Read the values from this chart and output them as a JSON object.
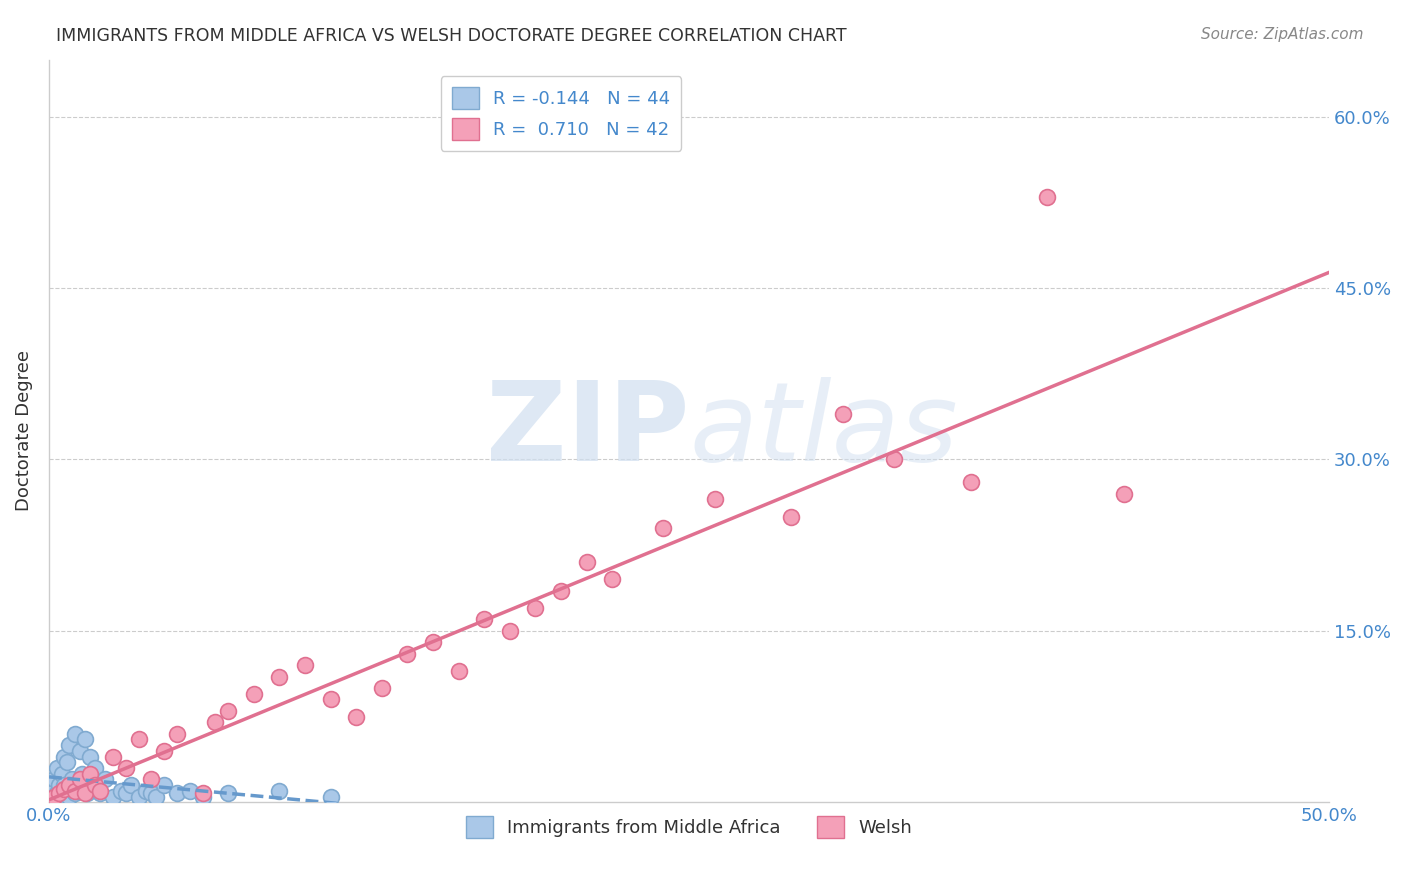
{
  "title": "IMMIGRANTS FROM MIDDLE AFRICA VS WELSH DOCTORATE DEGREE CORRELATION CHART",
  "source": "Source: ZipAtlas.com",
  "ylabel": "Doctorate Degree",
  "y_ticks": [
    0.0,
    0.15,
    0.3,
    0.45,
    0.6
  ],
  "y_tick_labels": [
    "",
    "15.0%",
    "30.0%",
    "45.0%",
    "60.0%"
  ],
  "xlim": [
    0.0,
    0.5
  ],
  "ylim": [
    0.0,
    0.65
  ],
  "series1_name": "Immigrants from Middle Africa",
  "series1_color": "#aac8e8",
  "series1_edge_color": "#80aad0",
  "series1_R": -0.144,
  "series1_N": 44,
  "series1_line_color": "#6699cc",
  "series1_x": [
    0.001,
    0.002,
    0.002,
    0.003,
    0.003,
    0.004,
    0.004,
    0.005,
    0.005,
    0.006,
    0.006,
    0.007,
    0.007,
    0.008,
    0.008,
    0.009,
    0.01,
    0.01,
    0.011,
    0.012,
    0.012,
    0.013,
    0.014,
    0.015,
    0.016,
    0.017,
    0.018,
    0.02,
    0.022,
    0.025,
    0.028,
    0.03,
    0.032,
    0.035,
    0.038,
    0.04,
    0.042,
    0.045,
    0.05,
    0.055,
    0.06,
    0.07,
    0.09,
    0.11
  ],
  "series1_y": [
    0.005,
    0.01,
    0.02,
    0.008,
    0.03,
    0.005,
    0.015,
    0.01,
    0.025,
    0.015,
    0.04,
    0.01,
    0.035,
    0.005,
    0.05,
    0.02,
    0.008,
    0.06,
    0.015,
    0.01,
    0.045,
    0.025,
    0.055,
    0.008,
    0.04,
    0.015,
    0.03,
    0.008,
    0.02,
    0.005,
    0.01,
    0.008,
    0.015,
    0.005,
    0.01,
    0.008,
    0.005,
    0.015,
    0.008,
    0.01,
    0.005,
    0.008,
    0.01,
    0.005
  ],
  "series2_name": "Welsh",
  "series2_color": "#f4a0b8",
  "series2_edge_color": "#e07090",
  "series2_R": 0.71,
  "series2_N": 42,
  "series2_line_color": "#e07090",
  "series2_x": [
    0.002,
    0.004,
    0.006,
    0.008,
    0.01,
    0.012,
    0.014,
    0.016,
    0.018,
    0.02,
    0.025,
    0.03,
    0.035,
    0.04,
    0.045,
    0.05,
    0.06,
    0.065,
    0.07,
    0.08,
    0.09,
    0.1,
    0.11,
    0.12,
    0.13,
    0.14,
    0.15,
    0.16,
    0.17,
    0.18,
    0.19,
    0.2,
    0.21,
    0.22,
    0.24,
    0.26,
    0.29,
    0.31,
    0.33,
    0.36,
    0.39,
    0.42
  ],
  "series2_y": [
    0.005,
    0.008,
    0.012,
    0.015,
    0.01,
    0.02,
    0.008,
    0.025,
    0.015,
    0.01,
    0.04,
    0.03,
    0.055,
    0.02,
    0.045,
    0.06,
    0.008,
    0.07,
    0.08,
    0.095,
    0.11,
    0.12,
    0.09,
    0.075,
    0.1,
    0.13,
    0.14,
    0.115,
    0.16,
    0.15,
    0.17,
    0.185,
    0.21,
    0.195,
    0.24,
    0.265,
    0.25,
    0.34,
    0.3,
    0.28,
    0.53,
    0.27
  ],
  "background_color": "#ffffff",
  "grid_color": "#cccccc",
  "title_color": "#333333",
  "axis_label_color": "#4488cc",
  "watermark_color": "#d0dff0"
}
